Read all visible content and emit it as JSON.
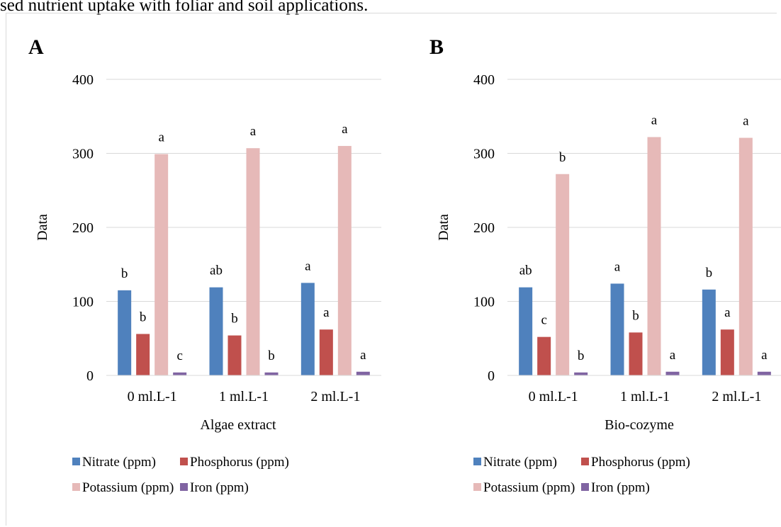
{
  "caption_fragment": "sed nutrient uptake with foliar and soil applications.",
  "colors": {
    "nitrate": "#4f81bd",
    "phosphorus": "#c0504d",
    "potassium": "#e6b9b8",
    "iron": "#8064a2",
    "grid": "#d9d9d9"
  },
  "chart_data": [
    {
      "type": "bar",
      "panel_label": "A",
      "title": "",
      "xlabel": "Algae extract",
      "ylabel": "Data",
      "ylim": [
        0,
        400
      ],
      "yticks": [
        0,
        100,
        200,
        300,
        400
      ],
      "grid": true,
      "legend_position": "bottom",
      "categories": [
        "0 ml.L-1",
        "1 ml.L-1",
        "2 ml.L-1"
      ],
      "series": [
        {
          "name": "Nitrate (ppm)",
          "color": "#4f81bd",
          "values": [
            115,
            119,
            125
          ],
          "labels": [
            "b",
            "ab",
            "a"
          ]
        },
        {
          "name": "Phosphorus (ppm)",
          "color": "#c0504d",
          "values": [
            56,
            54,
            62
          ],
          "labels": [
            "b",
            "b",
            "a"
          ]
        },
        {
          "name": "Potassium (ppm)",
          "color": "#e6b9b8",
          "values": [
            299,
            307,
            310
          ],
          "labels": [
            "a",
            "a",
            "a"
          ]
        },
        {
          "name": "Iron (ppm)",
          "color": "#8064a2",
          "values": [
            4,
            4,
            5
          ],
          "labels": [
            "c",
            "b",
            "a"
          ]
        }
      ]
    },
    {
      "type": "bar",
      "panel_label": "B",
      "title": "",
      "xlabel": "Bio-cozyme",
      "ylabel": "Data",
      "ylim": [
        0,
        400
      ],
      "yticks": [
        0,
        100,
        200,
        300,
        400
      ],
      "grid": true,
      "legend_position": "bottom",
      "categories": [
        "0 ml.L-1",
        "1 ml.L-1",
        "2 ml.L-1"
      ],
      "series": [
        {
          "name": "Nitrate (ppm)",
          "color": "#4f81bd",
          "values": [
            119,
            124,
            116
          ],
          "labels": [
            "ab",
            "a",
            "b"
          ]
        },
        {
          "name": "Phosphorus (ppm)",
          "color": "#c0504d",
          "values": [
            52,
            58,
            62
          ],
          "labels": [
            "c",
            "b",
            "a"
          ]
        },
        {
          "name": "Potassium (ppm)",
          "color": "#e6b9b8",
          "values": [
            272,
            322,
            321
          ],
          "labels": [
            "b",
            "a",
            "a"
          ]
        },
        {
          "name": "Iron (ppm)",
          "color": "#8064a2",
          "values": [
            4,
            5,
            5
          ],
          "labels": [
            "b",
            "a",
            "a"
          ]
        }
      ]
    }
  ]
}
